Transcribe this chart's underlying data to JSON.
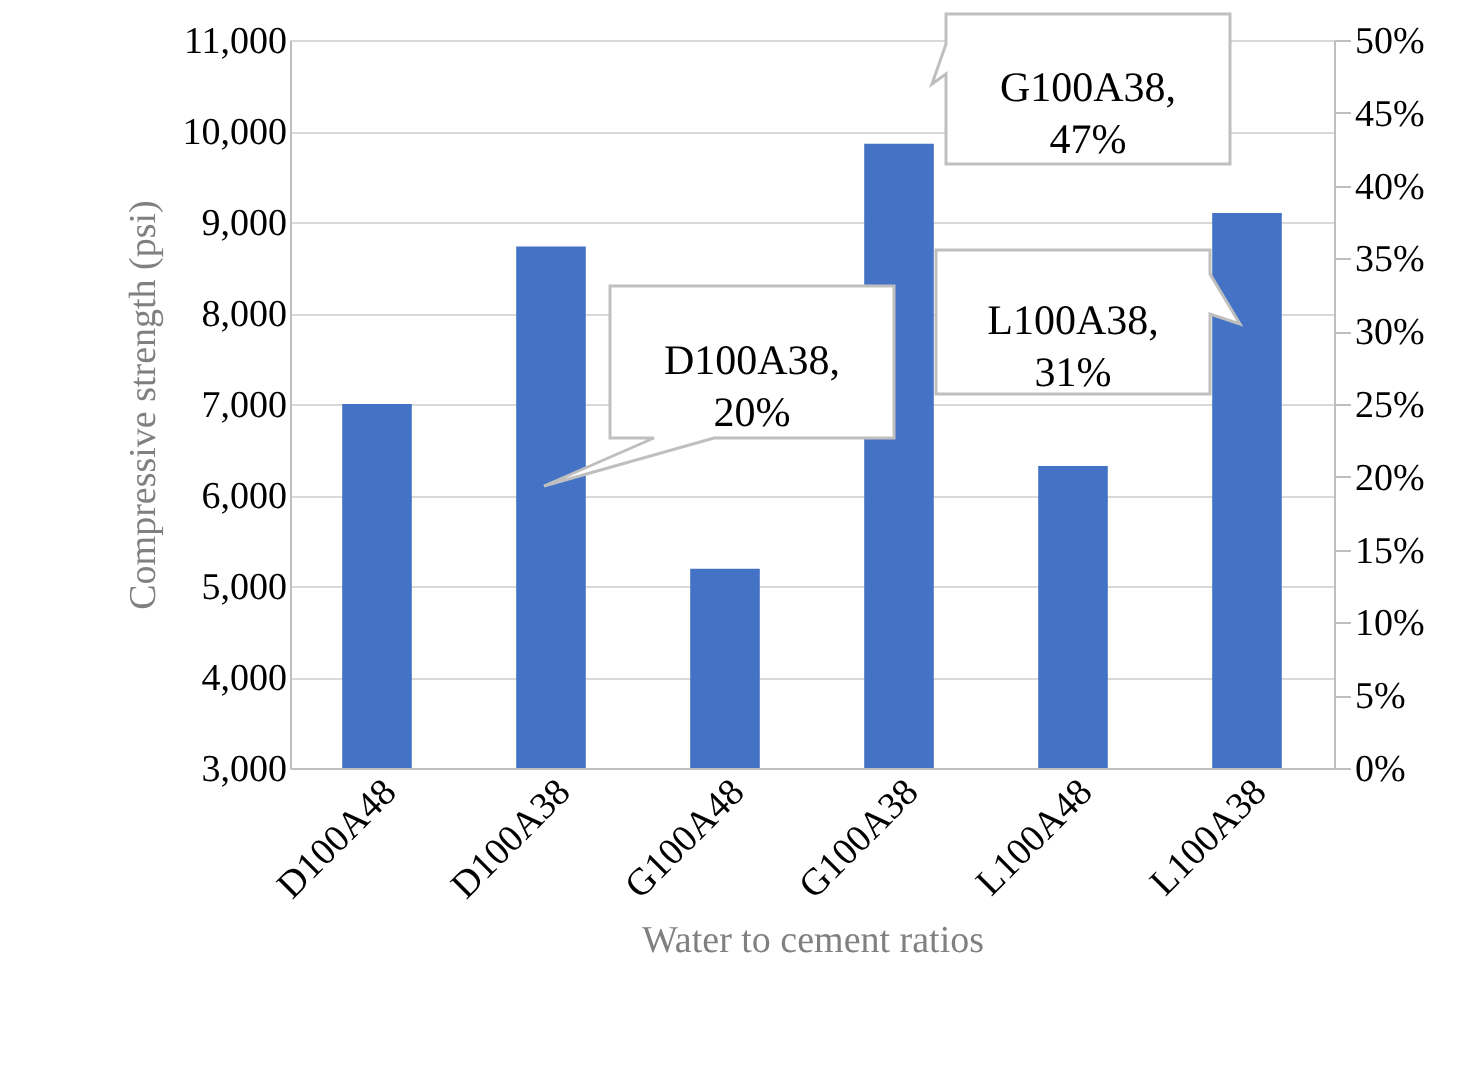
{
  "chart_data": {
    "type": "bar",
    "xlabel": "Water to cement ratios",
    "ylabel": "Compressive strength (psi)",
    "categories": [
      "D100A48",
      "D100A38",
      "G100A48",
      "G100A38",
      "L100A48",
      "L100A38"
    ],
    "series": [
      {
        "color": "#4472c4",
        "values": [
          7000,
          8730,
          5190,
          9860,
          6320,
          9100
        ]
      }
    ],
    "ylim": [
      3000,
      11000
    ],
    "yticks": [
      {
        "value": 3000,
        "label": "3,000"
      },
      {
        "value": 4000,
        "label": "4,000"
      },
      {
        "value": 5000,
        "label": "5,000"
      },
      {
        "value": 6000,
        "label": "6,000"
      },
      {
        "value": 7000,
        "label": "7,000"
      },
      {
        "value": 8000,
        "label": "8,000"
      },
      {
        "value": 9000,
        "label": "9,000"
      },
      {
        "value": 10000,
        "label": "10,000"
      },
      {
        "value": 11000,
        "label": "11,000"
      }
    ],
    "y2lim": [
      0,
      50
    ],
    "y2ticks": [
      {
        "value": 0,
        "label": "0%"
      },
      {
        "value": 5,
        "label": "5%"
      },
      {
        "value": 10,
        "label": "10%"
      },
      {
        "value": 15,
        "label": "15%"
      },
      {
        "value": 20,
        "label": "20%"
      },
      {
        "value": 25,
        "label": "25%"
      },
      {
        "value": 30,
        "label": "30%"
      },
      {
        "value": 35,
        "label": "35%"
      },
      {
        "value": 40,
        "label": "40%"
      },
      {
        "value": 45,
        "label": "45%"
      },
      {
        "value": 50,
        "label": "50%"
      }
    ],
    "grid": "y",
    "legend": false,
    "annotations": [
      "D100A38,\n20%",
      "G100A38,\n47%",
      "L100A38,\n31%"
    ]
  }
}
